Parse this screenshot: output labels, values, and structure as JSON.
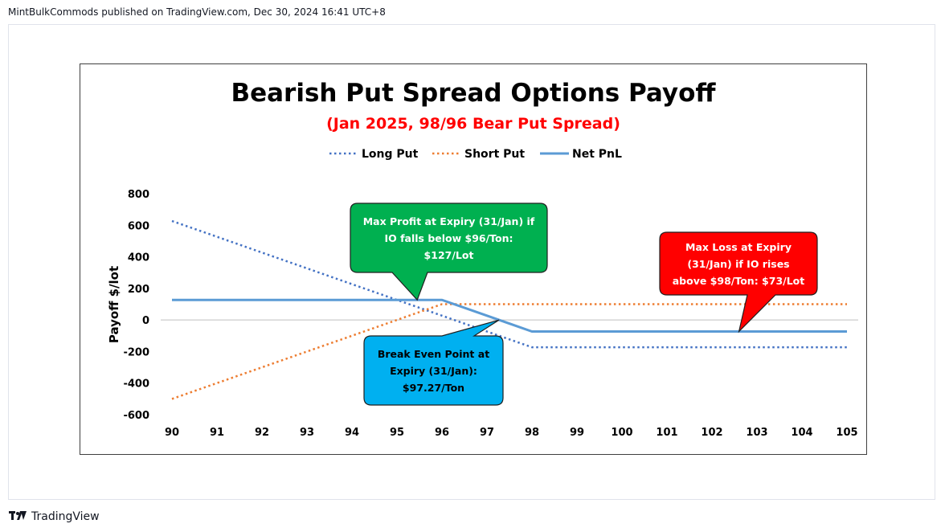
{
  "header": {
    "publisher_line": "MintBulkCommods published on TradingView.com, Dec 30, 2024 16:41 UTC+8"
  },
  "footer": {
    "brand": "TradingView",
    "logo_icon": "tradingview-logo-icon"
  },
  "colors": {
    "long_put": "#4472C4",
    "short_put": "#ED7D31",
    "net_pnl": "#5B9BD5",
    "title_sub": "#FF0000",
    "callout_profit": "#00B050",
    "callout_loss": "#FF0000",
    "callout_breakeven": "#00B0F0"
  },
  "chart_data": {
    "type": "line",
    "title": "Bearish Put Spread Options Payoff",
    "subtitle": "(Jan 2025, 98/96 Bear Put Spread)",
    "xlabel": "",
    "ylabel": "Payoff $/lot",
    "categories": [
      "90",
      "91",
      "92",
      "93",
      "94",
      "95",
      "96",
      "97",
      "98",
      "99",
      "100",
      "101",
      "102",
      "103",
      "104",
      "105"
    ],
    "x": [
      90,
      91,
      92,
      93,
      94,
      95,
      96,
      97,
      98,
      99,
      100,
      101,
      102,
      103,
      104,
      105
    ],
    "ylim": [
      -600,
      800
    ],
    "yticks": [
      -600,
      -400,
      -200,
      0,
      200,
      400,
      600,
      800
    ],
    "ytick_labels": [
      "-600",
      "-400",
      "-200",
      "0",
      "200",
      "400",
      "600",
      "800"
    ],
    "grid": false,
    "legend_position": "top",
    "series": [
      {
        "name": "Long Put",
        "style": "dotted",
        "values": [
          627,
          527,
          427,
          327,
          227,
          127,
          27,
          -73,
          -173,
          -173,
          -173,
          -173,
          -173,
          -173,
          -173,
          -173
        ]
      },
      {
        "name": "Short Put",
        "style": "dotted",
        "values": [
          -500,
          -400,
          -300,
          -200,
          -100,
          0,
          100,
          100,
          100,
          100,
          100,
          100,
          100,
          100,
          100,
          100
        ]
      },
      {
        "name": "Net PnL",
        "style": "solid",
        "values": [
          127,
          127,
          127,
          127,
          127,
          127,
          127,
          27,
          -73,
          -73,
          -73,
          -73,
          -73,
          -73,
          -73,
          -73
        ]
      }
    ],
    "annotations": [
      {
        "id": "max-profit",
        "lines": [
          "Max Profit at Expiry (31/Jan) if",
          "IO falls below $96/Ton:",
          "$127/Lot"
        ],
        "point_x": 95.45,
        "point_y": 127
      },
      {
        "id": "max-loss",
        "lines": [
          "Max Loss at Expiry",
          "(31/Jan) if IO rises",
          "above $98/Ton: $73/Lot"
        ],
        "point_x": 102.6,
        "point_y": -73
      },
      {
        "id": "break-even",
        "lines": [
          "Break Even Point at",
          "Expiry (31/Jan):",
          "$97.27/Ton"
        ],
        "point_x": 97.27,
        "point_y": 0
      }
    ]
  }
}
